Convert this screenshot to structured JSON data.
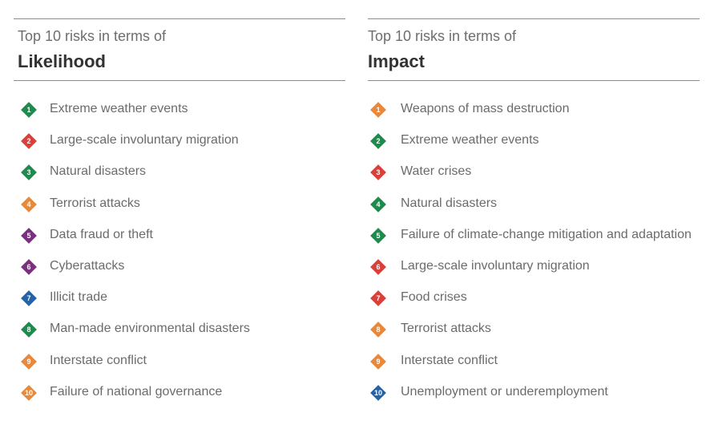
{
  "panels": [
    {
      "subtitle": "Top 10 risks in terms of",
      "title": "Likelihood",
      "items": [
        {
          "num": "1",
          "label": "Extreme weather events",
          "color": "#1e8a4c"
        },
        {
          "num": "2",
          "label": "Large-scale involuntary migration",
          "color": "#d9403a"
        },
        {
          "num": "3",
          "label": "Natural disasters",
          "color": "#1e8a4c"
        },
        {
          "num": "4",
          "label": "Terrorist attacks",
          "color": "#e8883a"
        },
        {
          "num": "5",
          "label": "Data fraud or theft",
          "color": "#7a2f7f"
        },
        {
          "num": "6",
          "label": "Cyberattacks",
          "color": "#7a2f7f"
        },
        {
          "num": "7",
          "label": "Illicit trade",
          "color": "#2563a8"
        },
        {
          "num": "8",
          "label": "Man-made environmental disasters",
          "color": "#1e8a4c"
        },
        {
          "num": "9",
          "label": "Interstate conflict",
          "color": "#e8883a"
        },
        {
          "num": "10",
          "label": "Failure of national governance",
          "color": "#e8883a"
        }
      ]
    },
    {
      "subtitle": "Top 10 risks in terms of",
      "title": "Impact",
      "items": [
        {
          "num": "1",
          "label": "Weapons of mass destruction",
          "color": "#e8883a"
        },
        {
          "num": "2",
          "label": "Extreme weather events",
          "color": "#1e8a4c"
        },
        {
          "num": "3",
          "label": "Water crises",
          "color": "#d9403a"
        },
        {
          "num": "4",
          "label": "Natural disasters",
          "color": "#1e8a4c"
        },
        {
          "num": "5",
          "label": "Failure of climate-change mitigation and adaptation",
          "color": "#1e8a4c"
        },
        {
          "num": "6",
          "label": "Large-scale involuntary migration",
          "color": "#d9403a"
        },
        {
          "num": "7",
          "label": "Food crises",
          "color": "#d9403a"
        },
        {
          "num": "8",
          "label": "Terrorist attacks",
          "color": "#e8883a"
        },
        {
          "num": "9",
          "label": "Interstate conflict",
          "color": "#e8883a"
        },
        {
          "num": "10",
          "label": "Unemployment or underemployment",
          "color": "#2563a8"
        }
      ]
    }
  ]
}
